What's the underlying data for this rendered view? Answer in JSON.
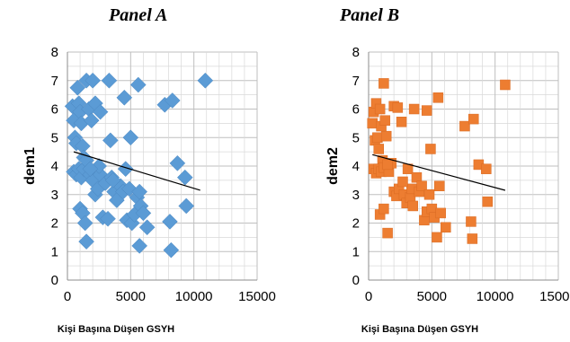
{
  "chart_data": [
    {
      "type": "scatter",
      "title": "Panel A",
      "xlabel": "Kişi Başına Düşen GSYH",
      "ylabel": "dem1",
      "xlim": [
        0,
        15000
      ],
      "ylim": [
        0,
        8
      ],
      "xticks": [
        "0",
        "5000",
        "10000",
        "15000"
      ],
      "yticks": [
        "0",
        "1",
        "2",
        "3",
        "4",
        "5",
        "6",
        "7",
        "8"
      ],
      "grid": true,
      "marker": "diamond",
      "color": "#5b9bd5",
      "trendline": {
        "x": [
          500,
          10500
        ],
        "y": [
          4.5,
          3.15
        ]
      },
      "points": [
        [
          400,
          6.1
        ],
        [
          500,
          5.6
        ],
        [
          600,
          5.0
        ],
        [
          700,
          4.8
        ],
        [
          800,
          6.75
        ],
        [
          900,
          6.2
        ],
        [
          1000,
          5.9
        ],
        [
          1100,
          5.5
        ],
        [
          1200,
          4.7
        ],
        [
          1300,
          4.3
        ],
        [
          500,
          3.8
        ],
        [
          700,
          3.7
        ],
        [
          900,
          3.9
        ],
        [
          1100,
          3.6
        ],
        [
          1300,
          3.9
        ],
        [
          1500,
          4.2
        ],
        [
          1500,
          7.0
        ],
        [
          1700,
          6.0
        ],
        [
          1900,
          5.6
        ],
        [
          2000,
          7.0
        ],
        [
          2200,
          6.2
        ],
        [
          2600,
          5.9
        ],
        [
          1000,
          2.5
        ],
        [
          1200,
          2.35
        ],
        [
          1400,
          2.0
        ],
        [
          1500,
          1.35
        ],
        [
          1800,
          3.7
        ],
        [
          2000,
          3.5
        ],
        [
          2200,
          3.0
        ],
        [
          2400,
          3.2
        ],
        [
          2600,
          3.7
        ],
        [
          2800,
          2.2
        ],
        [
          3000,
          3.4
        ],
        [
          3200,
          2.15
        ],
        [
          3400,
          4.9
        ],
        [
          3300,
          7.0
        ],
        [
          3500,
          3.6
        ],
        [
          3700,
          3.1
        ],
        [
          3900,
          2.8
        ],
        [
          4200,
          3.3
        ],
        [
          4400,
          3.1
        ],
        [
          4600,
          3.9
        ],
        [
          4700,
          2.1
        ],
        [
          4900,
          3.2
        ],
        [
          4500,
          6.4
        ],
        [
          5000,
          5.0
        ],
        [
          5100,
          2.0
        ],
        [
          5300,
          2.3
        ],
        [
          5500,
          2.9
        ],
        [
          5700,
          3.1
        ],
        [
          5700,
          1.2
        ],
        [
          5800,
          2.6
        ],
        [
          6000,
          2.35
        ],
        [
          6300,
          1.85
        ],
        [
          5600,
          6.85
        ],
        [
          7700,
          6.15
        ],
        [
          8100,
          2.05
        ],
        [
          8200,
          1.05
        ],
        [
          8300,
          6.3
        ],
        [
          8700,
          4.1
        ],
        [
          9300,
          3.6
        ],
        [
          9400,
          2.6
        ],
        [
          10900,
          7.0
        ],
        [
          2500,
          4.0
        ],
        [
          1800,
          3.9
        ],
        [
          3600,
          3.5
        ]
      ]
    },
    {
      "type": "scatter",
      "title": "Panel B",
      "xlabel": "Kişi Başına Düşen GSYH",
      "ylabel": "dem2",
      "xlim": [
        0,
        15000
      ],
      "ylim": [
        0,
        8
      ],
      "xticks": [
        "0",
        "5000",
        "10000",
        "15000"
      ],
      "yticks": [
        "0",
        "1",
        "2",
        "3",
        "4",
        "5",
        "6",
        "7",
        "8"
      ],
      "grid": true,
      "marker": "square",
      "color": "#ed7d31",
      "trendline": {
        "x": [
          300,
          10800
        ],
        "y": [
          4.4,
          3.15
        ]
      },
      "points": [
        [
          300,
          5.5
        ],
        [
          400,
          5.9
        ],
        [
          500,
          4.9
        ],
        [
          600,
          6.2
        ],
        [
          700,
          5.0
        ],
        [
          800,
          4.6
        ],
        [
          900,
          6.0
        ],
        [
          1000,
          5.4
        ],
        [
          1100,
          4.2
        ],
        [
          1200,
          6.9
        ],
        [
          1300,
          5.6
        ],
        [
          1400,
          5.05
        ],
        [
          400,
          3.9
        ],
        [
          600,
          3.75
        ],
        [
          800,
          3.9
        ],
        [
          1000,
          3.8
        ],
        [
          1200,
          3.95
        ],
        [
          900,
          2.3
        ],
        [
          1200,
          2.5
        ],
        [
          1500,
          1.65
        ],
        [
          1600,
          3.8
        ],
        [
          1800,
          4.1
        ],
        [
          2000,
          6.1
        ],
        [
          2300,
          6.05
        ],
        [
          2000,
          3.1
        ],
        [
          2200,
          2.95
        ],
        [
          2400,
          3.2
        ],
        [
          2600,
          5.55
        ],
        [
          2800,
          3.0
        ],
        [
          3000,
          2.7
        ],
        [
          3100,
          3.9
        ],
        [
          3300,
          2.9
        ],
        [
          3400,
          3.2
        ],
        [
          3600,
          6.0
        ],
        [
          3800,
          3.6
        ],
        [
          4000,
          3.1
        ],
        [
          4200,
          3.3
        ],
        [
          4400,
          2.1
        ],
        [
          4600,
          2.4
        ],
        [
          4600,
          5.95
        ],
        [
          4800,
          3.0
        ],
        [
          4900,
          4.6
        ],
        [
          5000,
          2.5
        ],
        [
          5200,
          2.2
        ],
        [
          5400,
          1.5
        ],
        [
          5600,
          3.3
        ],
        [
          5700,
          2.35
        ],
        [
          5500,
          6.4
        ],
        [
          6100,
          1.85
        ],
        [
          7600,
          5.4
        ],
        [
          8100,
          2.05
        ],
        [
          8200,
          1.45
        ],
        [
          8300,
          5.65
        ],
        [
          8700,
          4.05
        ],
        [
          9300,
          3.9
        ],
        [
          9400,
          2.75
        ],
        [
          10800,
          6.85
        ],
        [
          1500,
          4.05
        ],
        [
          2700,
          3.45
        ],
        [
          3500,
          2.6
        ]
      ]
    }
  ]
}
